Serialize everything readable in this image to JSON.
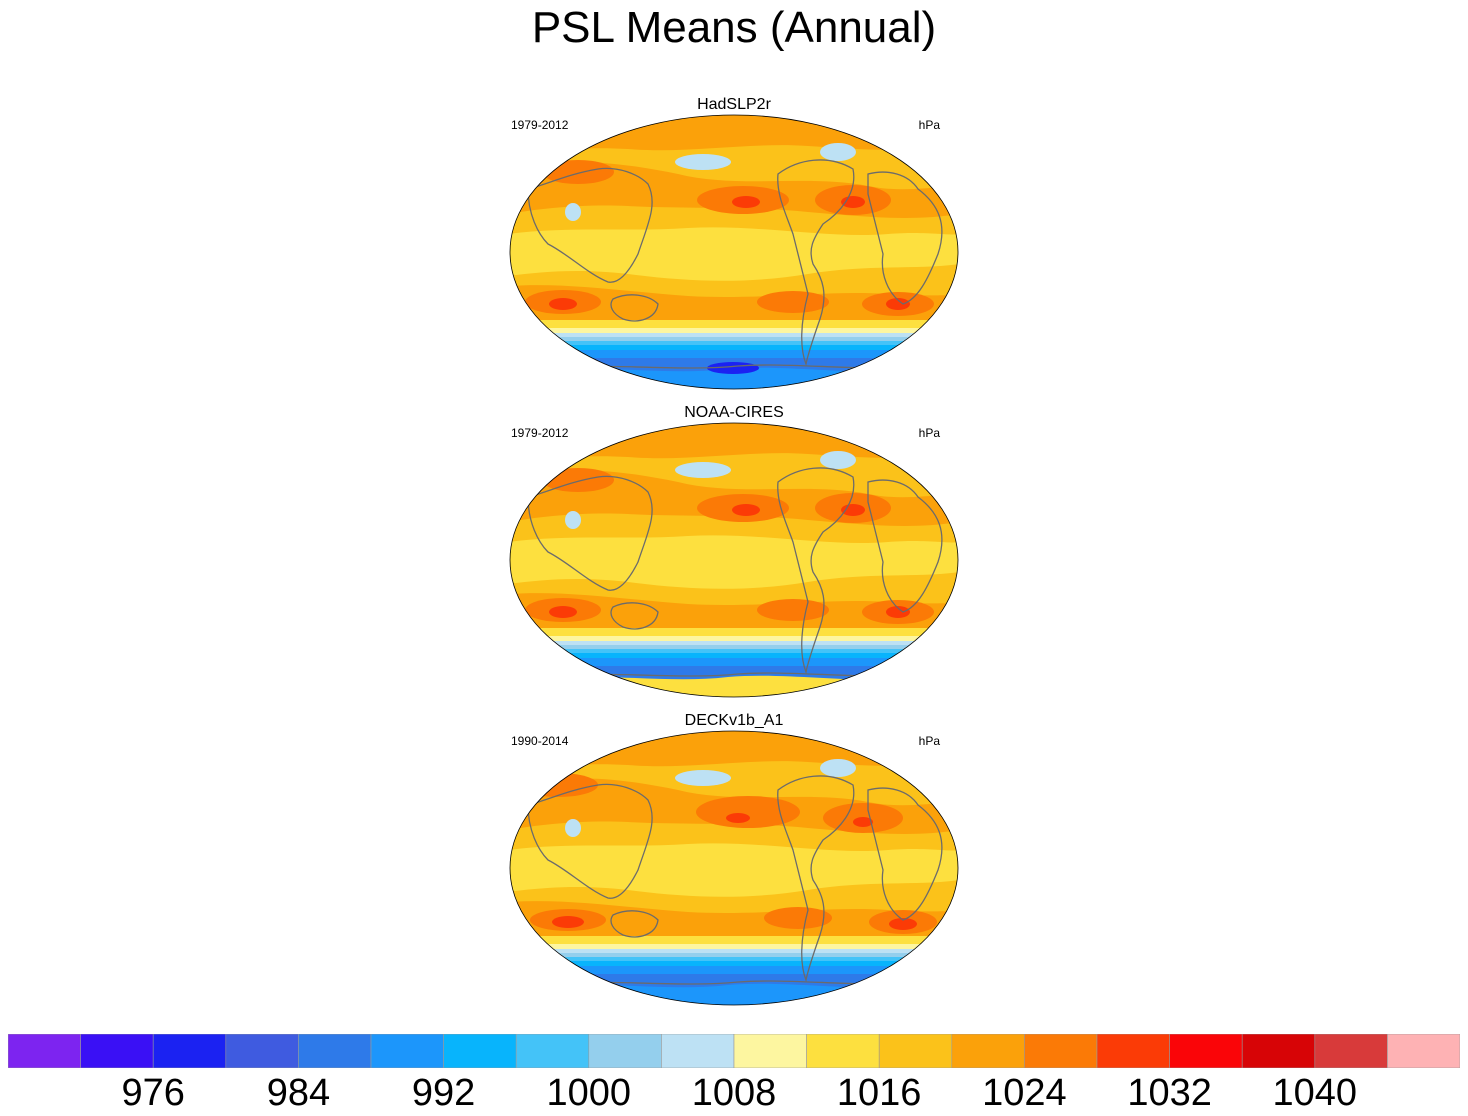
{
  "title": "PSL Means (Annual)",
  "panels": [
    {
      "name": "HadSLP2r",
      "years": "1979-2012",
      "units": "hPa"
    },
    {
      "name": "NOAA-CIRES",
      "years": "1979-2012",
      "units": "hPa"
    },
    {
      "name": "DECKv1b_A1",
      "years": "1990-2014",
      "units": "hPa"
    }
  ],
  "chart_data": {
    "type": "heatmap",
    "title": "PSL Means (Annual)",
    "projection": "Robinson (Pacific-centered)",
    "units": "hPa",
    "colorbar": {
      "levels": [
        972,
        976,
        980,
        984,
        988,
        992,
        996,
        1000,
        1004,
        1008,
        1012,
        1016,
        1020,
        1024,
        1028,
        1032,
        1036,
        1040,
        1044
      ],
      "tick_labels": [
        "976",
        "984",
        "992",
        "1000",
        "1008",
        "1016",
        "1024",
        "1032",
        "1040"
      ],
      "tick_values": [
        976,
        984,
        992,
        1000,
        1008,
        1016,
        1024,
        1032,
        1040
      ],
      "colors": [
        "#7d24f0",
        "#3a10f5",
        "#1b22f2",
        "#3f5be0",
        "#2e7ae9",
        "#1c96fb",
        "#08b4fc",
        "#44c3f8",
        "#94cfed",
        "#bde1f4",
        "#fdf6a0",
        "#fde03f",
        "#fbc21a",
        "#fba10a",
        "#fb7a06",
        "#fb3b06",
        "#fa0508",
        "#d70406",
        "#d83a3a",
        "#feb2b4"
      ]
    }
  },
  "icons": {
    "coastline": "coastline-outline"
  }
}
